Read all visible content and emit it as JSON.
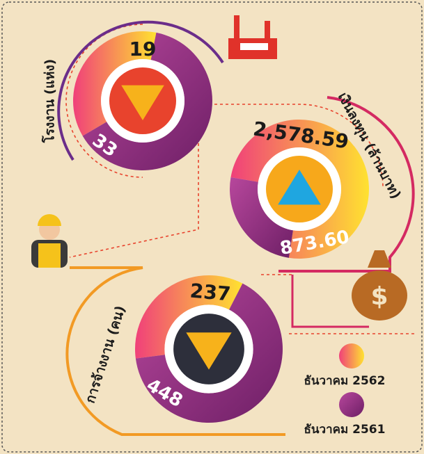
{
  "legend": [
    {
      "name": "ธันวาคม 2562",
      "color": "#f45a7a"
    },
    {
      "name": "ธันวาคม 2561",
      "color": "#8e2a82"
    }
  ],
  "chart_data": [
    {
      "type": "donut",
      "title": "โรงงาน (แห่ง)",
      "values": [
        19,
        33
      ],
      "indicator": "down",
      "center_color": "#e8432d"
    },
    {
      "type": "donut",
      "title": "เงินลงทุน (ล้านบาท)",
      "values": [
        2578.59,
        873.6
      ],
      "value_labels": [
        "2,578.59",
        "873.60"
      ],
      "indicator": "up",
      "center_color": "#f7a81b"
    },
    {
      "type": "donut",
      "title": "การจ้างงาน (คน)",
      "values": [
        237,
        448
      ],
      "indicator": "down",
      "center_color": "#2d2f3b"
    }
  ]
}
